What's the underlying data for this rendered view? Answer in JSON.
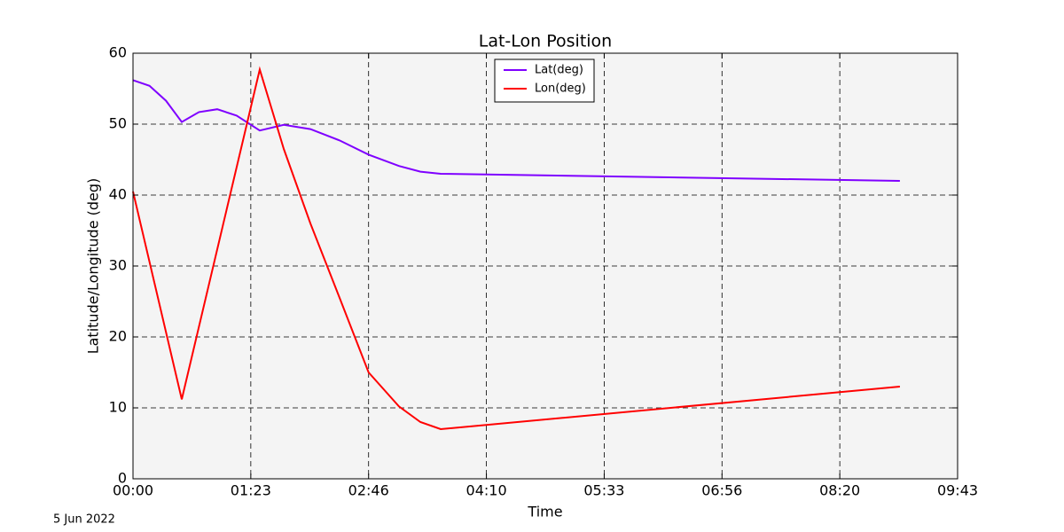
{
  "chart_data": {
    "type": "line",
    "title": "Lat-Lon Position",
    "x_label": "Time",
    "y_label": "Latitude/Longitude (deg)",
    "footnote": "5 Jun 2022",
    "xlim": [
      0,
      35000
    ],
    "ylim": [
      0,
      60
    ],
    "xticks": [
      {
        "value": 0,
        "label": "00:00"
      },
      {
        "value": 5000,
        "label": "01:23"
      },
      {
        "value": 10000,
        "label": "02:46"
      },
      {
        "value": 15000,
        "label": "04:10"
      },
      {
        "value": 20000,
        "label": "05:33"
      },
      {
        "value": 25000,
        "label": "06:56"
      },
      {
        "value": 30000,
        "label": "08:20"
      },
      {
        "value": 35000,
        "label": "09:43"
      }
    ],
    "yticks": [
      0,
      10,
      20,
      30,
      40,
      50,
      60
    ],
    "grid": true,
    "legend": "upper center",
    "series": [
      {
        "name": "Lat(deg)",
        "color": "#7f00ff",
        "x": [
          0,
          700,
          1400,
          2070,
          2800,
          3575,
          4400,
          5380,
          6400,
          7530,
          8770,
          10000,
          11290,
          12200,
          13060,
          32550
        ],
        "values": [
          56.2,
          55.4,
          53.3,
          50.3,
          51.7,
          52.1,
          51.2,
          49.1,
          49.9,
          49.3,
          47.7,
          45.7,
          44.1,
          43.3,
          43.0,
          42.0
        ]
      },
      {
        "name": "Lon(deg)",
        "color": "#ff0000",
        "x": [
          0,
          2070,
          5380,
          5900,
          6400,
          7530,
          8770,
          10000,
          11290,
          12200,
          13060,
          32550
        ],
        "values": [
          40.5,
          11.2,
          57.7,
          52,
          46.5,
          36,
          25.5,
          15,
          10.2,
          8.0,
          7.0,
          13.0
        ]
      }
    ]
  }
}
